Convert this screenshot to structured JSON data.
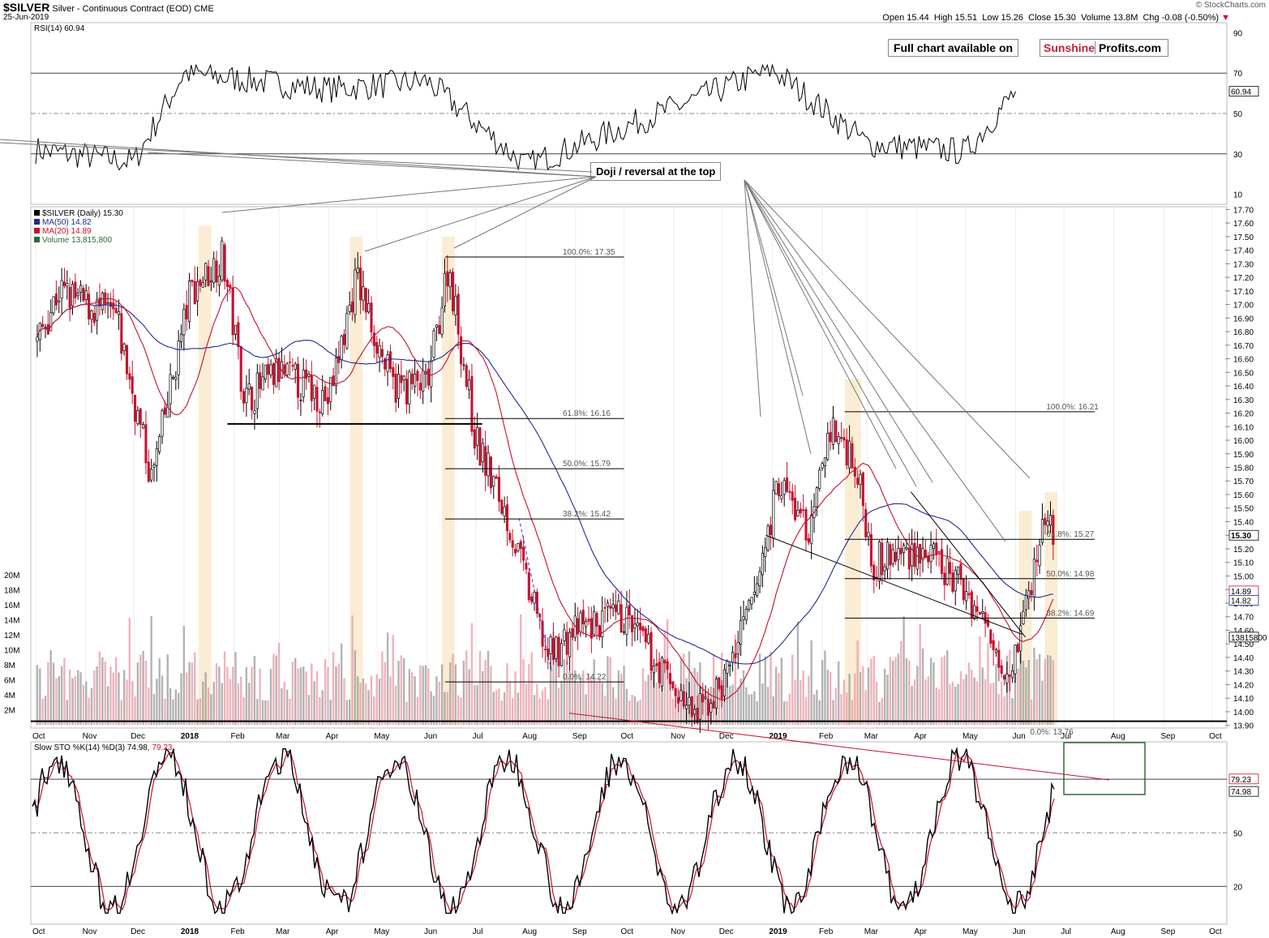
{
  "header": {
    "symbol": "$SILVER",
    "description": "Silver - Continuous Contract (EOD)",
    "exchange": "CME",
    "date": "25-Jun-2019",
    "ohlc": {
      "open_label": "Open",
      "open": "15.44",
      "high_label": "High",
      "high": "15.51",
      "low_label": "Low",
      "low": "15.26",
      "close_label": "Close",
      "close": "15.30",
      "volume_label": "Volume",
      "volume": "13.8M",
      "chg_label": "Chg",
      "chg": "-0.08 (-0.50%)"
    },
    "credit": "© StockCharts.com"
  },
  "watermark": {
    "prefix": "Full chart available on",
    "brand_a": "Sunshine",
    "brand_b": "Profits.com",
    "brand_color": "#c0223e"
  },
  "annotation": {
    "text": "Doji / reversal at the top"
  },
  "colors": {
    "up": "#000000",
    "down": "#c8102e",
    "ma50": "#1f2d8c",
    "ma20": "#c8102e",
    "vol_up": "#9a9a9a",
    "vol_down": "#e89aa4",
    "highlight": "#f5deb0",
    "stoch_k": "#000000",
    "stoch_d": "#c8102e",
    "box": "#2e6b3a"
  },
  "chart_data": [
    {
      "type": "line",
      "title": "RSI(14) 60.94",
      "series": [
        {
          "name": "RSI(14)",
          "last": 60.94
        }
      ],
      "y_ticks": [
        90,
        70,
        50,
        30,
        10
      ],
      "y_label_last": "60.94",
      "reference_levels": [
        70,
        50,
        30
      ],
      "summary_points": [
        {
          "x": "2017-10",
          "y": 32
        },
        {
          "x": "2017-12",
          "y": 26
        },
        {
          "x": "2018-01",
          "y": 70
        },
        {
          "x": "2018-04",
          "y": 62
        },
        {
          "x": "2018-06",
          "y": 66
        },
        {
          "x": "2018-08",
          "y": 24
        },
        {
          "x": "2019-01",
          "y": 72
        },
        {
          "x": "2019-03",
          "y": 35
        },
        {
          "x": "2019-05",
          "y": 31
        },
        {
          "x": "2019-06",
          "y": 61
        }
      ]
    },
    {
      "type": "candlestick",
      "title": "$SILVER (Daily) 15.30",
      "legend": [
        {
          "label": "$SILVER (Daily) 15.30",
          "color": "#000000"
        },
        {
          "label": "MA(50) 14.82",
          "color": "#1f2d8c"
        },
        {
          "label": "MA(20) 14.89",
          "color": "#c8102e"
        },
        {
          "label": "Volume 13,815,800",
          "color": "#2e6b3a"
        }
      ],
      "y_ticks": [
        "17.70",
        "17.60",
        "17.50",
        "17.40",
        "17.30",
        "17.20",
        "17.10",
        "17.00",
        "16.90",
        "16.80",
        "16.70",
        "16.60",
        "16.50",
        "16.40",
        "16.30",
        "16.20",
        "16.10",
        "16.00",
        "15.90",
        "15.80",
        "15.70",
        "15.60",
        "15.50",
        "15.40",
        "15.30",
        "15.20",
        "15.10",
        "15.00",
        "14.90",
        "14.80",
        "14.70",
        "14.60",
        "14.50",
        "14.40",
        "14.30",
        "14.20",
        "14.10",
        "14.00",
        "13.90"
      ],
      "ylim": [
        13.88,
        17.72
      ],
      "price_badges": [
        "15.30",
        "14.89",
        "14.82",
        "13815800"
      ],
      "volume_ticks": [
        "20M",
        "18M",
        "16M",
        "14M",
        "12M",
        "10M",
        "8M",
        "6M",
        "4M",
        "2M"
      ],
      "x_labels": [
        "Oct",
        "Nov",
        "Dec",
        "2018",
        "Feb",
        "Mar",
        "Apr",
        "May",
        "Jun",
        "Jul",
        "Aug",
        "Sep",
        "Oct",
        "Nov",
        "Dec",
        "2019",
        "Feb",
        "Mar",
        "Apr",
        "May",
        "Jun",
        "Jul",
        "Aug",
        "Sep",
        "Oct"
      ],
      "price_path": [
        {
          "x": "2017-10-01",
          "y": 16.7
        },
        {
          "x": "2017-10-15",
          "y": 17.1
        },
        {
          "x": "2017-11-01",
          "y": 17.0
        },
        {
          "x": "2017-11-20",
          "y": 16.9
        },
        {
          "x": "2017-12-12",
          "y": 15.7
        },
        {
          "x": "2018-01-05",
          "y": 17.1
        },
        {
          "x": "2018-01-25",
          "y": 17.35
        },
        {
          "x": "2018-02-08",
          "y": 16.3
        },
        {
          "x": "2018-03-01",
          "y": 16.5
        },
        {
          "x": "2018-04-01",
          "y": 16.3
        },
        {
          "x": "2018-04-18",
          "y": 17.2
        },
        {
          "x": "2018-05-10",
          "y": 16.4
        },
        {
          "x": "2018-06-01",
          "y": 16.4
        },
        {
          "x": "2018-06-14",
          "y": 17.3
        },
        {
          "x": "2018-07-01",
          "y": 16.0
        },
        {
          "x": "2018-07-20",
          "y": 15.45
        },
        {
          "x": "2018-08-15",
          "y": 14.4
        },
        {
          "x": "2018-09-01",
          "y": 14.6
        },
        {
          "x": "2018-10-01",
          "y": 14.7
        },
        {
          "x": "2018-11-14",
          "y": 13.95
        },
        {
          "x": "2018-12-01",
          "y": 14.2
        },
        {
          "x": "2018-12-20",
          "y": 14.8
        },
        {
          "x": "2019-01-05",
          "y": 15.7
        },
        {
          "x": "2019-01-25",
          "y": 15.3
        },
        {
          "x": "2019-02-05",
          "y": 16.1
        },
        {
          "x": "2019-02-20",
          "y": 15.9
        },
        {
          "x": "2019-03-05",
          "y": 15.1
        },
        {
          "x": "2019-04-01",
          "y": 15.2
        },
        {
          "x": "2019-05-01",
          "y": 14.9
        },
        {
          "x": "2019-05-28",
          "y": 14.3
        },
        {
          "x": "2019-06-10",
          "y": 14.9
        },
        {
          "x": "2019-06-20",
          "y": 15.5
        },
        {
          "x": "2019-06-25",
          "y": 15.3
        }
      ],
      "fib_left": [
        {
          "label": "100.0%: 17.35",
          "value": 17.35
        },
        {
          "label": "61.8%: 16.16",
          "value": 16.16
        },
        {
          "label": "50.0%: 15.79",
          "value": 15.79
        },
        {
          "label": "38.2%: 15.42",
          "value": 15.42
        },
        {
          "label": "0.0%: 14.22",
          "value": 14.22
        }
      ],
      "fib_right": [
        {
          "label": "100.0%: 16.21",
          "value": 16.21
        },
        {
          "label": "61.8%: 15.27",
          "value": 15.27
        },
        {
          "label": "50.0%: 14.98",
          "value": 14.98
        },
        {
          "label": "38.2%: 14.69",
          "value": 14.69
        },
        {
          "label": "0.0%: 13.76",
          "value": 13.76
        }
      ],
      "support_levels": [
        16.12,
        13.93
      ]
    },
    {
      "type": "line",
      "title": "Slow STO %K(14) %D(3) 74.98, 79.23",
      "legend_prefix": "Slow STO %K(14) %D(3)",
      "k_last": "74.98",
      "d_last": "79.23",
      "y_ticks": [
        50,
        20
      ],
      "reference_levels": [
        80,
        50,
        20
      ],
      "x_labels": [
        "Oct",
        "Nov",
        "Dec",
        "2018",
        "Feb",
        "Mar",
        "Apr",
        "May",
        "Jun",
        "Jul",
        "Aug",
        "Sep",
        "Oct",
        "Nov",
        "Dec",
        "2019",
        "Feb",
        "Mar",
        "Apr",
        "May",
        "Jun",
        "Jul",
        "Aug",
        "Sep",
        "Oct"
      ]
    }
  ]
}
